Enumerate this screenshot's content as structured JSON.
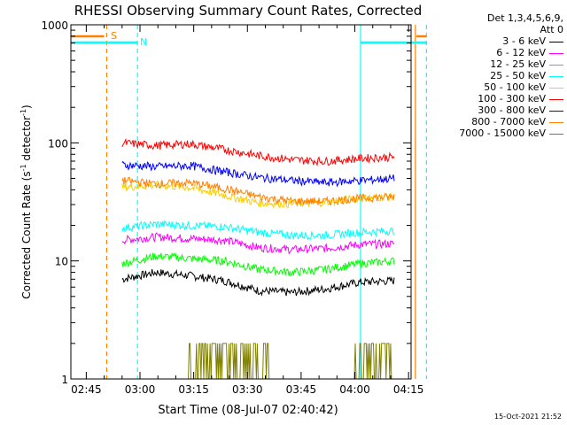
{
  "chart_data": {
    "type": "line",
    "title": "RHESSI Observing Summary Count Rates, Corrected",
    "xlabel": "Start Time (08-Jul-07 02:40:42)",
    "ylabel_main": "Corrected Count Rate (s",
    "ylabel_sup1": "-1",
    "ylabel_mid": " detector",
    "ylabel_sup2": "-1",
    "ylabel_end": ")",
    "yscale": "log",
    "ylim": [
      1,
      1000
    ],
    "xlim_minutes": [
      40.7,
      18.2
    ],
    "x_axis_start": "02:40",
    "x_ticks": [
      "02:45",
      "03:00",
      "03:15",
      "03:30",
      "03:45",
      "04:00",
      "04:15"
    ],
    "y_ticks": [
      "1",
      "10",
      "100",
      "1000"
    ],
    "legend_header": [
      "Det 1,3,4,5,6,9,",
      "Att 0"
    ],
    "series": [
      {
        "name": "3 - 6 keV",
        "color": "#000000",
        "values": [
          7.0,
          8.0,
          7.5,
          6.8,
          5.6,
          5.4,
          5.8,
          6.6,
          6.8
        ]
      },
      {
        "name": "6 - 12 keV",
        "color": "#ff00ff",
        "values": [
          15.0,
          16.0,
          15.5,
          15.0,
          13.0,
          12.5,
          12.8,
          13.8,
          14.0
        ]
      },
      {
        "name": "12 - 25 keV",
        "color": "#00ff00",
        "values": [
          9.5,
          11.0,
          10.5,
          10.0,
          8.5,
          8.0,
          8.5,
          9.5,
          10.0
        ]
      },
      {
        "name": "25 - 50 keV",
        "color": "#00ffff",
        "values": [
          19.0,
          20.5,
          20.0,
          19.5,
          17.5,
          16.5,
          16.5,
          17.5,
          18.0
        ]
      },
      {
        "name": "50 - 100 keV",
        "color": "#ffcc00",
        "values": [
          42.0,
          44.0,
          42.0,
          36.0,
          31.0,
          30.5,
          31.5,
          34.0,
          35.0
        ]
      },
      {
        "name": "100 - 300 keV",
        "color": "#ff0000",
        "values": [
          100.0,
          95.0,
          98.0,
          88.0,
          78.0,
          72.0,
          70.0,
          74.0,
          76.0
        ]
      },
      {
        "name": "300 - 800 keV",
        "color": "#0000ff",
        "values": [
          65.0,
          63.0,
          64.0,
          57.0,
          51.0,
          48.0,
          46.0,
          48.0,
          50.0
        ]
      },
      {
        "name": "800 - 7000 keV",
        "color": "#ff8000",
        "values": [
          48.0,
          45.0,
          46.0,
          41.0,
          35.0,
          32.0,
          32.0,
          34.0,
          35.0
        ]
      },
      {
        "name": "7000 - 15000 keV",
        "color": "#808000",
        "values": [
          1.0,
          1.0,
          1.0,
          1.0,
          1.0,
          1.0,
          1.0,
          1.0,
          1.0
        ]
      }
    ],
    "annotations": [
      "S",
      "N"
    ],
    "grid": false,
    "legend_placement": "right"
  },
  "footer": {
    "date": "15-Oct-2021 21:52"
  }
}
